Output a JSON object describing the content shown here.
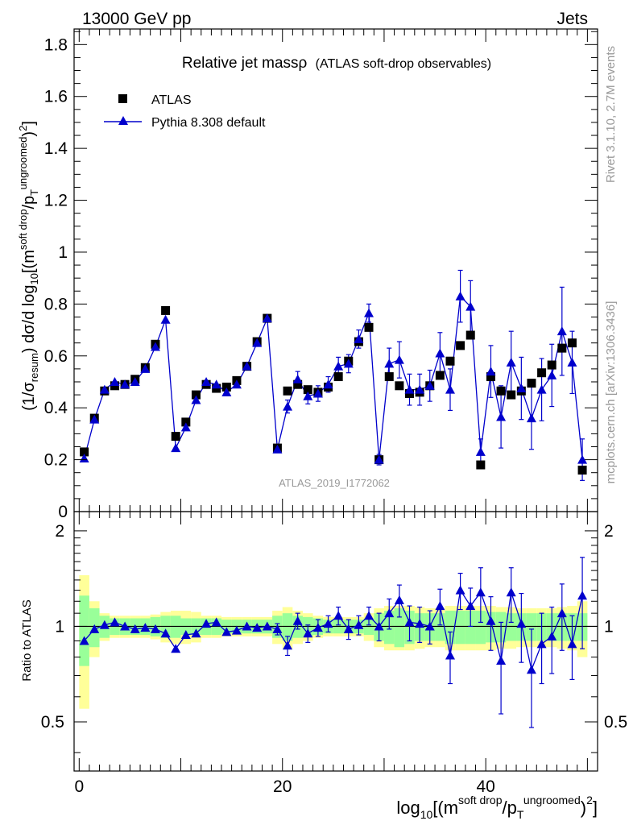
{
  "header": {
    "left": "13000 GeV pp",
    "right": "Jets"
  },
  "side_text": {
    "rivet": "Rivet 3.1.10,  2.7M events",
    "mcplots": "mcplots.cern.ch [arXiv:1306.3436]"
  },
  "chart_data": {
    "type": "scatter",
    "title": "Relative jet massρ",
    "subtitle": "(ATLAS soft-drop observables)",
    "watermark": "ATLAS_2019_I1772062",
    "xlabel": "log10[(m^soft drop/pT^ungroomed)^2]",
    "ylabel": "(1/σresum) dσ/d log10[(m^soft drop/pT^ungroomed)^2]",
    "ratio_ylabel": "Ratio to ATLAS",
    "xlim": [
      -0.5,
      51
    ],
    "ylim": [
      0,
      1.86
    ],
    "ratio_ylim": [
      0.35,
      2.3
    ],
    "ratio_scale": "log",
    "x_ticks": [
      "0",
      "20",
      "40"
    ],
    "y_ticks": [
      "0",
      "0.2",
      "0.4",
      "0.6",
      "0.8",
      "1",
      "1.2",
      "1.4",
      "1.6",
      "1.8"
    ],
    "ratio_ticks": [
      "0.5",
      "1",
      "2"
    ],
    "legend_position": "top-left",
    "series": [
      {
        "name": "ATLAS",
        "color": "#000000",
        "marker": "square",
        "x": [
          0.5,
          1.5,
          2.5,
          3.5,
          4.5,
          5.5,
          6.5,
          7.5,
          8.5,
          9.5,
          10.5,
          11.5,
          12.5,
          13.5,
          14.5,
          15.5,
          16.5,
          17.5,
          18.5,
          19.5,
          20.5,
          21.5,
          22.5,
          23.5,
          24.5,
          25.5,
          26.5,
          27.5,
          28.5,
          29.5,
          30.5,
          31.5,
          32.5,
          33.5,
          34.5,
          35.5,
          36.5,
          37.5,
          38.5,
          39.5,
          40.5,
          41.5,
          42.5,
          43.5,
          44.5,
          45.5,
          46.5,
          47.5,
          48.5,
          49.5
        ],
        "y": [
          0.23,
          0.36,
          0.465,
          0.485,
          0.49,
          0.51,
          0.555,
          0.645,
          0.775,
          0.29,
          0.345,
          0.45,
          0.49,
          0.475,
          0.48,
          0.505,
          0.56,
          0.655,
          0.745,
          0.245,
          0.465,
          0.49,
          0.47,
          0.46,
          0.48,
          0.52,
          0.58,
          0.655,
          0.71,
          0.2,
          0.52,
          0.485,
          0.455,
          0.46,
          0.485,
          0.525,
          0.58,
          0.64,
          0.68,
          0.18,
          0.52,
          0.465,
          0.45,
          0.465,
          0.495,
          0.535,
          0.565,
          0.63,
          0.65,
          0.16
        ]
      },
      {
        "name": "Pythia 8.308 default",
        "color": "#0000cc",
        "marker": "triangle",
        "x": [
          0.5,
          1.5,
          2.5,
          3.5,
          4.5,
          5.5,
          6.5,
          7.5,
          8.5,
          9.5,
          10.5,
          11.5,
          12.5,
          13.5,
          14.5,
          15.5,
          16.5,
          17.5,
          18.5,
          19.5,
          20.5,
          21.5,
          22.5,
          23.5,
          24.5,
          25.5,
          26.5,
          27.5,
          28.5,
          29.5,
          30.5,
          31.5,
          32.5,
          33.5,
          34.5,
          35.5,
          36.5,
          37.5,
          38.5,
          39.5,
          40.5,
          41.5,
          42.5,
          43.5,
          44.5,
          45.5,
          46.5,
          47.5,
          48.5,
          49.5
        ],
        "y": [
          0.205,
          0.355,
          0.47,
          0.5,
          0.49,
          0.5,
          0.55,
          0.635,
          0.74,
          0.245,
          0.325,
          0.43,
          0.5,
          0.49,
          0.46,
          0.49,
          0.56,
          0.65,
          0.745,
          0.24,
          0.405,
          0.51,
          0.445,
          0.455,
          0.49,
          0.56,
          0.57,
          0.665,
          0.765,
          0.2,
          0.57,
          0.585,
          0.47,
          0.47,
          0.485,
          0.61,
          0.47,
          0.83,
          0.79,
          0.23,
          0.54,
          0.365,
          0.575,
          0.475,
          0.36,
          0.47,
          0.525,
          0.695,
          0.575,
          0.2
        ],
        "yerr": [
          0.005,
          0.006,
          0.006,
          0.006,
          0.006,
          0.006,
          0.007,
          0.008,
          0.01,
          0.005,
          0.008,
          0.01,
          0.012,
          0.012,
          0.012,
          0.012,
          0.013,
          0.014,
          0.014,
          0.01,
          0.025,
          0.03,
          0.03,
          0.03,
          0.03,
          0.035,
          0.035,
          0.035,
          0.035,
          0.02,
          0.06,
          0.07,
          0.06,
          0.06,
          0.06,
          0.08,
          0.08,
          0.1,
          0.1,
          0.05,
          0.1,
          0.12,
          0.12,
          0.12,
          0.12,
          0.12,
          0.12,
          0.17,
          0.12,
          0.08
        ]
      }
    ],
    "ratio": {
      "values": [
        0.9,
        0.98,
        1.01,
        1.03,
        1.0,
        0.98,
        0.99,
        0.98,
        0.95,
        0.85,
        0.94,
        0.95,
        1.02,
        1.03,
        0.96,
        0.97,
        1.0,
        0.99,
        1.0,
        0.98,
        0.87,
        1.04,
        0.95,
        0.99,
        1.02,
        1.08,
        0.98,
        1.01,
        1.08,
        1.0,
        1.1,
        1.21,
        1.03,
        1.02,
        1.0,
        1.16,
        0.81,
        1.3,
        1.16,
        1.28,
        1.04,
        0.78,
        1.28,
        1.02,
        0.73,
        0.88,
        0.93,
        1.1,
        0.88,
        1.25
      ],
      "errors": [
        0.02,
        0.02,
        0.02,
        0.02,
        0.02,
        0.02,
        0.02,
        0.02,
        0.02,
        0.03,
        0.03,
        0.03,
        0.03,
        0.03,
        0.03,
        0.03,
        0.03,
        0.03,
        0.03,
        0.04,
        0.06,
        0.06,
        0.06,
        0.06,
        0.06,
        0.07,
        0.07,
        0.07,
        0.07,
        0.1,
        0.12,
        0.14,
        0.13,
        0.13,
        0.12,
        0.15,
        0.15,
        0.17,
        0.16,
        0.25,
        0.2,
        0.25,
        0.25,
        0.25,
        0.25,
        0.22,
        0.22,
        0.26,
        0.2,
        0.4
      ],
      "band_inner": [
        0.25,
        0.14,
        0.08,
        0.06,
        0.06,
        0.06,
        0.06,
        0.07,
        0.08,
        0.08,
        0.06,
        0.06,
        0.06,
        0.06,
        0.05,
        0.05,
        0.05,
        0.05,
        0.05,
        0.08,
        0.1,
        0.08,
        0.07,
        0.06,
        0.05,
        0.05,
        0.05,
        0.05,
        0.06,
        0.1,
        0.12,
        0.14,
        0.12,
        0.1,
        0.1,
        0.1,
        0.12,
        0.12,
        0.12,
        0.12,
        0.11,
        0.11,
        0.1,
        0.1,
        0.1,
        0.1,
        0.1,
        0.1,
        0.1,
        0.1
      ],
      "band_outer": [
        0.45,
        0.2,
        0.1,
        0.08,
        0.08,
        0.08,
        0.08,
        0.09,
        0.11,
        0.12,
        0.12,
        0.11,
        0.08,
        0.08,
        0.07,
        0.07,
        0.07,
        0.07,
        0.07,
        0.12,
        0.15,
        0.12,
        0.1,
        0.08,
        0.07,
        0.07,
        0.07,
        0.07,
        0.1,
        0.14,
        0.16,
        0.16,
        0.16,
        0.15,
        0.14,
        0.14,
        0.16,
        0.16,
        0.16,
        0.16,
        0.16,
        0.15,
        0.15,
        0.14,
        0.14,
        0.14,
        0.14,
        0.15,
        0.16,
        0.2
      ],
      "band_inner_color": "#99ff99",
      "band_outer_color": "#ffff99"
    }
  }
}
